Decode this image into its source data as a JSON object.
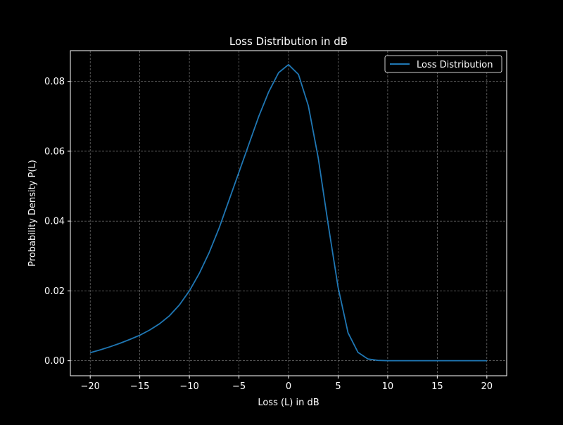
{
  "chart_data": {
    "type": "line",
    "title": "Loss Distribution in dB",
    "xlabel": "Loss (L) in dB",
    "ylabel": "Probability Density P(L)",
    "xlim": [
      -22,
      22
    ],
    "ylim": [
      -0.0043,
      0.0888
    ],
    "xticks": [
      -20,
      -15,
      -10,
      -5,
      0,
      5,
      10,
      15,
      20
    ],
    "xtick_labels": [
      "−20",
      "−15",
      "−10",
      "−5",
      "0",
      "5",
      "10",
      "15",
      "20"
    ],
    "yticks": [
      0.0,
      0.02,
      0.04,
      0.06,
      0.08
    ],
    "ytick_labels": [
      "0.00",
      "0.02",
      "0.04",
      "0.06",
      "0.08"
    ],
    "grid": true,
    "legend_position": "top-right",
    "series": [
      {
        "name": "Loss Distribution",
        "color": "#1f77b4",
        "x": [
          -20,
          -19,
          -18,
          -17,
          -16,
          -15,
          -14,
          -13,
          -12,
          -11,
          -10,
          -9,
          -8,
          -7,
          -6,
          -5,
          -4,
          -3,
          -2,
          -1,
          0,
          1,
          2,
          3,
          4,
          5,
          6,
          7,
          8,
          9,
          10,
          11,
          12,
          13,
          14,
          15,
          16,
          17,
          18,
          19,
          20
        ],
        "values": [
          0.0023,
          0.0031,
          0.004,
          0.005,
          0.0061,
          0.0073,
          0.0088,
          0.0106,
          0.0129,
          0.016,
          0.02,
          0.025,
          0.031,
          0.038,
          0.046,
          0.054,
          0.062,
          0.07,
          0.077,
          0.0825,
          0.0848,
          0.082,
          0.073,
          0.058,
          0.039,
          0.021,
          0.008,
          0.0024,
          0.0005,
          0.0001,
          0.0,
          0.0,
          0.0,
          0.0,
          0.0,
          0.0,
          0.0,
          0.0,
          0.0,
          0.0,
          0.0
        ]
      }
    ]
  }
}
